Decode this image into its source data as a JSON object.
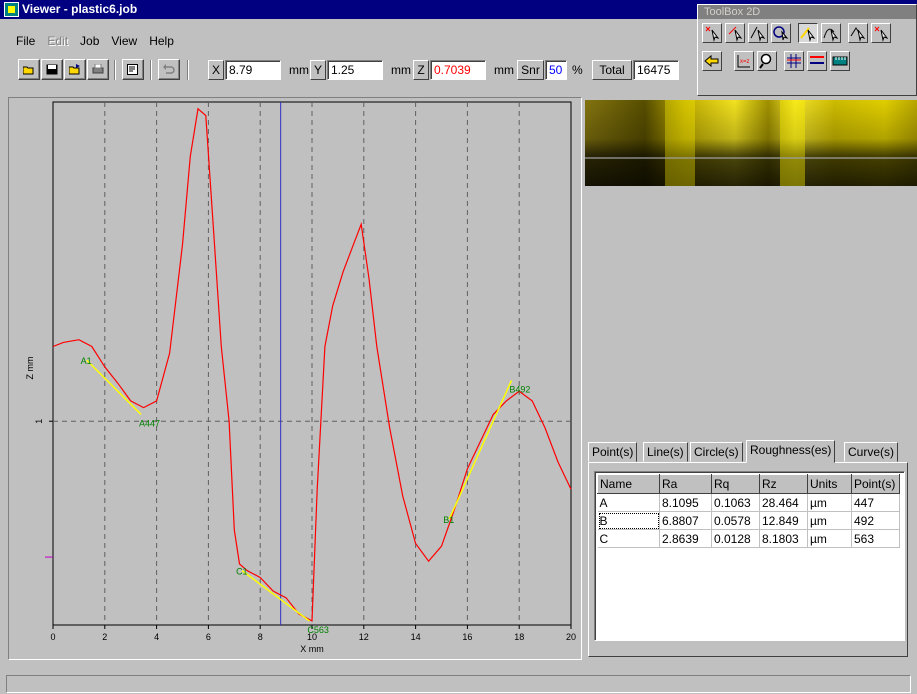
{
  "window": {
    "title": "Viewer - plastic6.job"
  },
  "menu": [
    {
      "label": "File",
      "enabled": true
    },
    {
      "label": "Edit",
      "enabled": false
    },
    {
      "label": "Job",
      "enabled": true
    },
    {
      "label": "View",
      "enabled": true
    },
    {
      "label": "Help",
      "enabled": true
    }
  ],
  "toolbar": {
    "x_label": "X",
    "x_value": "8.79",
    "x_unit": "mm",
    "y_label": "Y",
    "y_value": "1.25",
    "y_unit": "mm",
    "z_label": "Z",
    "z_value": "0.7039",
    "z_unit": "mm",
    "snr_label": "Snr",
    "snr_value": "50",
    "snr_unit": "%",
    "total_label": "Total",
    "total_value": "16475",
    "buttons": [
      "open-icon",
      "save-icon",
      "export-icon",
      "print-icon",
      "properties-icon",
      "undo-icon"
    ]
  },
  "toolbox": {
    "title": "ToolBox 2D",
    "row1": [
      "point-tool-icon",
      "line-tool-icon",
      "angle-tool-icon",
      "circle-tool-icon",
      "roughness-tool-icon",
      "curve-tool-icon",
      "profile-tool-icon",
      "cross-point-tool-icon"
    ],
    "row2": [
      "back-icon",
      "xy-scale-icon",
      "zoom-icon",
      "grid-icon",
      "level-icon",
      "ruler-icon"
    ]
  },
  "chart_data": {
    "type": "line",
    "xlabel": "X mm",
    "ylabel": "Z mm",
    "xlim": [
      0,
      20
    ],
    "x_ticks": [
      "0",
      "2",
      "4",
      "6",
      "8",
      "10",
      "12",
      "14",
      "16",
      "18",
      "20"
    ],
    "y_ticks": [
      "1"
    ],
    "grid": "vertical dashed",
    "cursor_x": 8.79,
    "series": [
      {
        "color": "#ff0000",
        "x": [
          0.0,
          0.4,
          1.0,
          1.5,
          2.0,
          2.5,
          3.0,
          3.5,
          4.0,
          4.5,
          5.0,
          5.3,
          5.6,
          5.9,
          6.2,
          6.5,
          6.8,
          7.0,
          7.2,
          7.5,
          8.0,
          8.5,
          9.0,
          9.5,
          9.8,
          10.0,
          10.2,
          10.5,
          10.8,
          11.2,
          11.6,
          11.9,
          12.2,
          12.5,
          13.0,
          13.5,
          14.0,
          14.5,
          15.0,
          15.5,
          16.0,
          16.5,
          17.0,
          17.5,
          18.0,
          18.5,
          19.0,
          19.5,
          20.0
        ],
        "y": [
          1.55,
          1.58,
          1.6,
          1.55,
          1.4,
          1.28,
          1.15,
          1.1,
          1.15,
          1.5,
          2.3,
          2.95,
          3.3,
          3.25,
          2.4,
          1.55,
          1.0,
          0.2,
          -0.05,
          -0.1,
          -0.15,
          -0.25,
          -0.3,
          -0.42,
          -0.45,
          -0.47,
          0.5,
          1.55,
          1.85,
          2.1,
          2.3,
          2.45,
          2.05,
          1.55,
          0.95,
          0.45,
          0.1,
          -0.03,
          0.08,
          0.35,
          0.65,
          0.85,
          1.05,
          1.15,
          1.22,
          1.15,
          0.95,
          0.7,
          0.5
        ]
      }
    ],
    "fit_lines": [
      {
        "name": "A",
        "start_label": "A1",
        "end_label": "A447",
        "x": [
          1.3,
          3.4
        ],
        "y": [
          1.45,
          1.05
        ]
      },
      {
        "name": "B",
        "start_label": "B1",
        "end_label": "B492",
        "x": [
          15.3,
          17.7
        ],
        "y": [
          0.28,
          1.3
        ]
      },
      {
        "name": "C",
        "start_label": "C1",
        "end_label": "C563",
        "x": [
          7.3,
          9.9
        ],
        "y": [
          -0.1,
          -0.47
        ]
      }
    ]
  },
  "tabs": [
    "Point(s)",
    "Line(s)",
    "Circle(s)",
    "Roughness(es)",
    "Curve(s)"
  ],
  "active_tab": "Roughness(es)",
  "roughness_table": {
    "columns": [
      "Name",
      "Ra",
      "Rq",
      "Rz",
      "Units",
      "Point(s)"
    ],
    "rows": [
      [
        "A",
        "8.1095",
        "0.1063",
        "28.464",
        "µm",
        "447"
      ],
      [
        "B",
        "6.8807",
        "0.0578",
        "12.849",
        "µm",
        "492"
      ],
      [
        "C",
        "2.8639",
        "0.0128",
        "8.1803",
        "µm",
        "563"
      ]
    ]
  },
  "status": {
    "text": ""
  }
}
